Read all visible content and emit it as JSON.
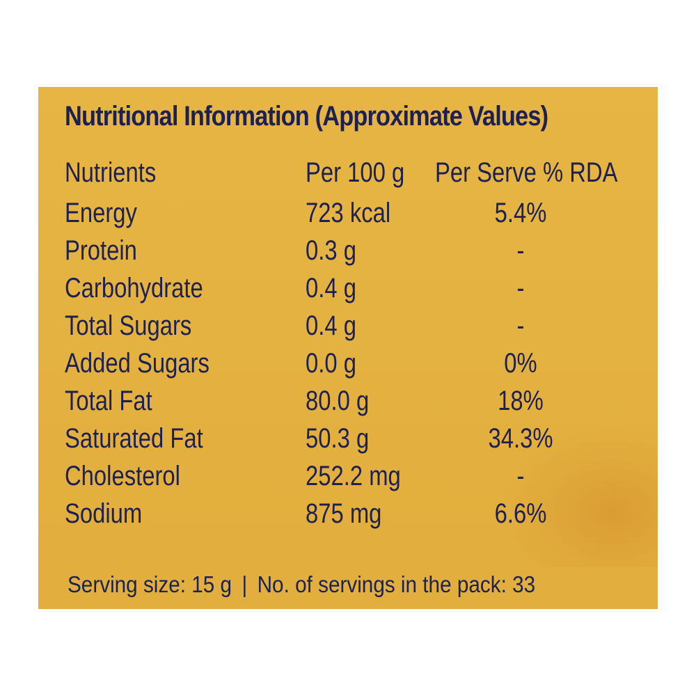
{
  "label": {
    "title": "Nutritional Information (Approximate Values)",
    "columns": [
      "Nutrients",
      "Per 100 g",
      "Per Serve % RDA"
    ],
    "rows": [
      {
        "nutrient": "Energy",
        "per100": "723 kcal",
        "rda": "5.4%"
      },
      {
        "nutrient": "Protein",
        "per100": "0.3 g",
        "rda": "-"
      },
      {
        "nutrient": "Carbohydrate",
        "per100": "0.4 g",
        "rda": "-"
      },
      {
        "nutrient": "Total Sugars",
        "per100": "0.4 g",
        "rda": "-"
      },
      {
        "nutrient": "Added Sugars",
        "per100": "0.0 g",
        "rda": "0%"
      },
      {
        "nutrient": "Total Fat",
        "per100": "80.0 g",
        "rda": "18%"
      },
      {
        "nutrient": "Saturated Fat",
        "per100": "50.3 g",
        "rda": "34.3%"
      },
      {
        "nutrient": "Cholesterol",
        "per100": "252.2 mg",
        "rda": "-"
      },
      {
        "nutrient": "Sodium",
        "per100": "875 mg",
        "rda": "6.6%"
      }
    ],
    "serving_size": "Serving size: 15 g",
    "separator": "|",
    "servings_per_pack": "No. of servings in the pack: 33"
  },
  "colors": {
    "background": "#e4b241",
    "text": "#1d2152"
  }
}
